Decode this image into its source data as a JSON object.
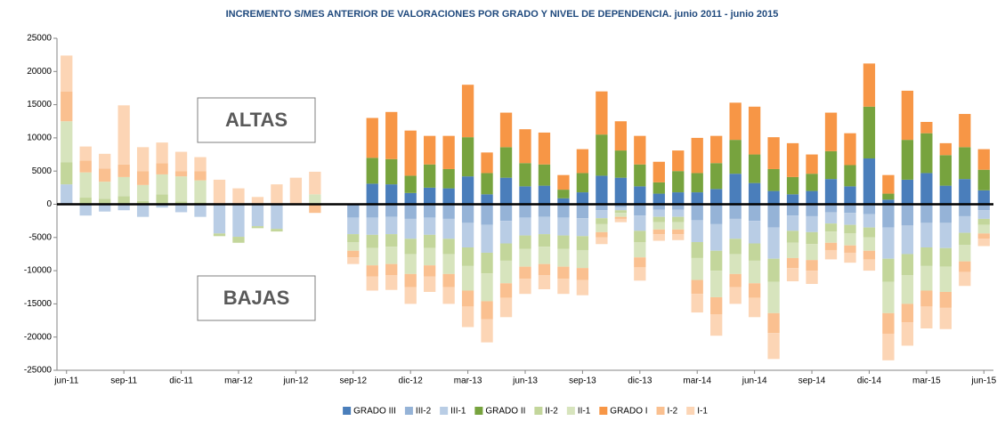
{
  "chart_data": {
    "type": "bar",
    "stacked": true,
    "title": "INCREMENTO S/MES ANTERIOR DE VALORACIONES POR GRADO Y NIVEL DE DEPENDENCIA. junio 2011 -  junio 2015",
    "annotations": [
      "ALTAS",
      "BAJAS"
    ],
    "categories": [
      "jun-11",
      null,
      null,
      "sep-11",
      null,
      null,
      "dic-11",
      null,
      null,
      "mar-12",
      null,
      null,
      "jun-12",
      null,
      null,
      "sep-12",
      null,
      null,
      "dic-12",
      null,
      null,
      "mar-13",
      null,
      null,
      "jun-13",
      null,
      null,
      "sep-13",
      null,
      null,
      "dic-13",
      null,
      null,
      "mar-14",
      null,
      null,
      "jun-14",
      null,
      null,
      "sep-14",
      null,
      null,
      "dic-14",
      null,
      null,
      "mar-15",
      null,
      null,
      "jun-15"
    ],
    "ylim": [
      -25000,
      25000
    ],
    "yticks": [
      -25000,
      -20000,
      -15000,
      -10000,
      -5000,
      0,
      5000,
      10000,
      15000,
      20000,
      25000
    ],
    "grid": false,
    "legend": "bottom",
    "series": [
      {
        "name": "GRADO III",
        "color": "#4a7ebb",
        "values": [
          0,
          0,
          0,
          0,
          0,
          0,
          0,
          0,
          0,
          0,
          0,
          0,
          0,
          0,
          0,
          0,
          3100,
          3000,
          1700,
          2500,
          2400,
          4200,
          1500,
          4000,
          2700,
          2800,
          900,
          1800,
          4300,
          4000,
          2700,
          1600,
          1800,
          1800,
          2300,
          4600,
          3200,
          2000,
          1500,
          2000,
          3800,
          2700,
          6900,
          700,
          3700,
          4700,
          2800,
          3800,
          2100
        ]
      },
      {
        "name": "III-2",
        "color": "#95b3d7",
        "values": [
          0,
          0,
          0,
          0,
          0,
          0,
          0,
          0,
          0,
          0,
          0,
          0,
          0,
          0,
          0,
          -2000,
          -2000,
          -1900,
          -2200,
          -2000,
          -2200,
          -2800,
          -3100,
          -2500,
          -2000,
          -1900,
          -2000,
          -2100,
          -900,
          -400,
          -1700,
          -800,
          -800,
          -2400,
          -3000,
          -2200,
          -2500,
          -3500,
          -1700,
          -1800,
          -1200,
          -1300,
          -1500,
          -3500,
          -3200,
          -2800,
          -2800,
          -1800,
          -900
        ]
      },
      {
        "name": "III-1",
        "color": "#b9cde5",
        "values": [
          3000,
          -1700,
          -1100,
          -900,
          -1900,
          -500,
          -1200,
          -1900,
          -4400,
          -4900,
          -3300,
          -3700,
          0,
          0,
          0,
          -2500,
          -2600,
          -2600,
          -3000,
          -2600,
          -3000,
          -3700,
          -4200,
          -3400,
          -2700,
          -2600,
          -2700,
          -2700,
          -1200,
          -500,
          -2300,
          -1100,
          -1100,
          -3300,
          -4000,
          -3000,
          -3400,
          -4700,
          -2300,
          -2400,
          -1700,
          -1800,
          -2000,
          -4700,
          -4300,
          -3700,
          -3800,
          -2500,
          -1300
        ]
      },
      {
        "name": "GRADO II",
        "color": "#77a33e",
        "values": [
          0,
          0,
          0,
          0,
          0,
          0,
          0,
          0,
          0,
          0,
          0,
          0,
          0,
          0,
          0,
          0,
          3900,
          3800,
          2600,
          3500,
          2900,
          5900,
          3200,
          4600,
          3500,
          3200,
          1300,
          2900,
          6200,
          4100,
          3300,
          1700,
          3200,
          2900,
          3900,
          5100,
          4300,
          3300,
          2600,
          2600,
          4200,
          3200,
          7800,
          900,
          6000,
          6000,
          4600,
          4800,
          3100
        ]
      },
      {
        "name": "II-2",
        "color": "#c3d69b",
        "values": [
          3300,
          1000,
          800,
          1200,
          500,
          1500,
          400,
          300,
          -400,
          -900,
          -300,
          -400,
          0,
          0,
          0,
          -1200,
          -2000,
          -1900,
          -2300,
          -2000,
          -2300,
          -2800,
          -3100,
          -2600,
          -2000,
          -1900,
          -2000,
          -2100,
          -900,
          -400,
          -1700,
          -800,
          -800,
          -2400,
          -3000,
          -2300,
          -2600,
          -3500,
          -1800,
          -1800,
          -1200,
          -1300,
          -1500,
          -3500,
          -3200,
          -2800,
          -2800,
          -1800,
          -900
        ]
      },
      {
        "name": "II-1",
        "color": "#d7e4bd",
        "values": [
          6200,
          3800,
          2600,
          2900,
          2400,
          3000,
          3800,
          3300,
          0,
          0,
          0,
          0,
          0,
          1500,
          0,
          -1300,
          -2600,
          -2600,
          -3000,
          -2600,
          -3000,
          -3700,
          -4200,
          -3400,
          -2700,
          -2600,
          -2700,
          -2700,
          -1200,
          -600,
          -2300,
          -1100,
          -1100,
          -3300,
          -4000,
          -3000,
          -3400,
          -4700,
          -2300,
          -2400,
          -1700,
          -1800,
          -2000,
          -4700,
          -4300,
          -3700,
          -3800,
          -2500,
          -1300
        ]
      },
      {
        "name": "GRADO I",
        "color": "#f79646",
        "values": [
          0,
          0,
          0,
          0,
          0,
          0,
          0,
          0,
          0,
          0,
          0,
          0,
          0,
          0,
          0,
          0,
          6000,
          7100,
          6800,
          4300,
          5000,
          7900,
          3100,
          5200,
          5100,
          4800,
          2200,
          3600,
          6500,
          4400,
          4300,
          3100,
          3100,
          5300,
          4100,
          5600,
          7200,
          4800,
          5100,
          2900,
          5800,
          4800,
          6500,
          2800,
          7400,
          1700,
          1800,
          5000,
          3100
        ]
      },
      {
        "name": "I-2",
        "color": "#fac090",
        "values": [
          4500,
          1800,
          2000,
          1900,
          2100,
          1700,
          800,
          1400,
          0,
          0,
          0,
          0,
          0,
          -1300,
          0,
          -1000,
          -1700,
          -1700,
          -2000,
          -1700,
          -2000,
          -2400,
          -2700,
          -2200,
          -1800,
          -1700,
          -1800,
          -1800,
          -800,
          -300,
          -1500,
          -700,
          -700,
          -2100,
          -2600,
          -2000,
          -2200,
          -3000,
          -1500,
          -1600,
          -1100,
          -1100,
          -1300,
          -3100,
          -2800,
          -2400,
          -2400,
          -1600,
          -800
        ]
      },
      {
        "name": "I-1",
        "color": "#fcd5b5",
        "values": [
          5400,
          2100,
          2200,
          8900,
          3600,
          3100,
          2900,
          2100,
          3700,
          2400,
          1100,
          3000,
          4000,
          3400,
          0,
          -1000,
          -2100,
          -2200,
          -2500,
          -2300,
          -2500,
          -3100,
          -3500,
          -2900,
          -2300,
          -2100,
          -2300,
          -2300,
          -1000,
          -500,
          -2000,
          -1000,
          -900,
          -2800,
          -3200,
          -2500,
          -2900,
          -3900,
          -2000,
          -2000,
          -1400,
          -1500,
          -1700,
          -4000,
          -3500,
          -3300,
          -3200,
          -2100,
          -1100
        ]
      }
    ]
  }
}
